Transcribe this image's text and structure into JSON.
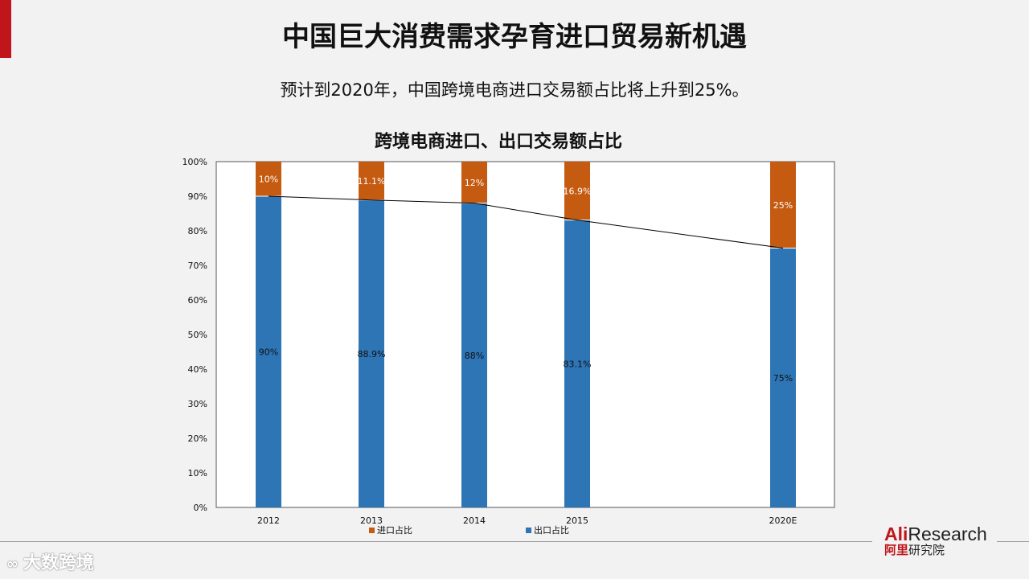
{
  "header": {
    "title": "中国巨大消费需求孕育进口贸易新机遇",
    "subtitle": "预计到2020年，中国跨境电商进口交易额占比将上升到25%。"
  },
  "chart_data": {
    "type": "bar",
    "stacked": true,
    "title": "跨境电商进口、出口交易额占比",
    "categories": [
      "2012",
      "2013",
      "2014",
      "2015",
      "2020E"
    ],
    "series": [
      {
        "name": "出口占比",
        "values": [
          90,
          88.9,
          88,
          83.1,
          75
        ],
        "labels": [
          "90%",
          "88.9%",
          "88%",
          "83.1%",
          "75%"
        ],
        "color": "#2e75b6"
      },
      {
        "name": "进口占比",
        "values": [
          10,
          11.1,
          12,
          16.9,
          25
        ],
        "labels": [
          "10%",
          "11.1%",
          "12%",
          "16.9%",
          "25%"
        ],
        "color": "#c55a11"
      }
    ],
    "trend_line": {
      "series": "出口占比",
      "color": "#000000"
    },
    "ylim": [
      0,
      100
    ],
    "yticks": [
      "0%",
      "10%",
      "20%",
      "30%",
      "40%",
      "50%",
      "60%",
      "70%",
      "80%",
      "90%",
      "100%"
    ],
    "legend_position": "bottom",
    "legend": [
      {
        "label": "进口占比",
        "color": "#c55a11"
      },
      {
        "label": "出口占比",
        "color": "#2e75b6"
      }
    ]
  },
  "brand": {
    "en_red": "Ali",
    "en_rest": "Research",
    "cn_red": "阿里",
    "cn_rest": "研究院"
  },
  "watermark": {
    "icon": "∞",
    "text": "大数跨境"
  }
}
